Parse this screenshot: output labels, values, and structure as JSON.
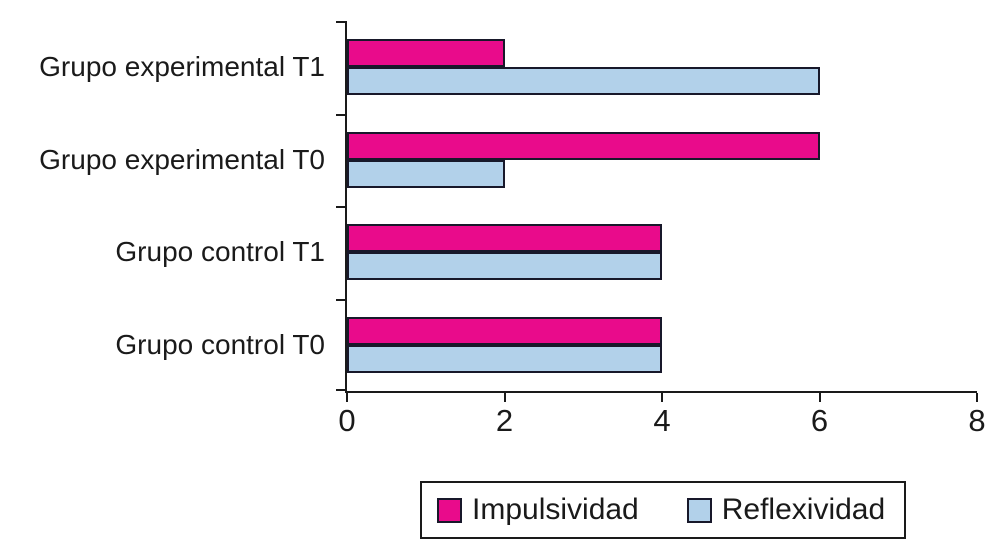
{
  "figure": {
    "background_color": "#ffffff",
    "text_color": "#1a1a1a",
    "axis_color": "#1a1a1a",
    "bar_border_color": "#18182a"
  },
  "chart_data": {
    "type": "bar",
    "orientation": "horizontal",
    "title": "",
    "xlabel": "",
    "ylabel": "",
    "categories": [
      "Grupo experimental T1",
      "Grupo experimental T0",
      "Grupo control T1",
      "Grupo control T0"
    ],
    "series": [
      {
        "name": "Impulsividad",
        "color": "#e90b8b",
        "values": [
          2,
          6,
          4,
          4
        ]
      },
      {
        "name": "Reflexividad",
        "color": "#b2d1ea",
        "values": [
          6,
          2,
          4,
          4
        ]
      }
    ],
    "xlim": [
      0,
      8
    ],
    "x_ticks": [
      0,
      2,
      4,
      6,
      8
    ],
    "grid": false,
    "legend_position": "bottom",
    "legend_labels": [
      "Impulsividad",
      "Reflexividad"
    ]
  }
}
